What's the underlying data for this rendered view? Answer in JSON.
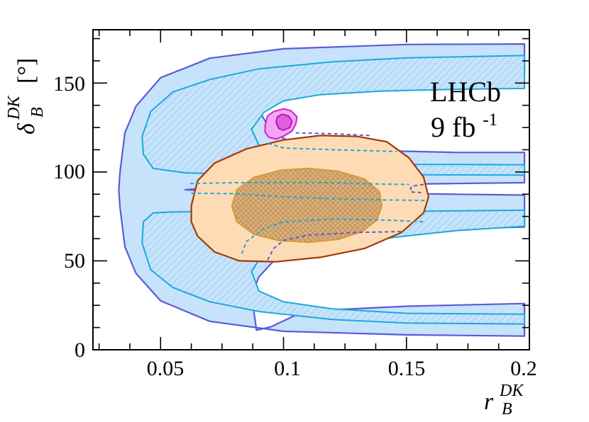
{
  "chart_data": {
    "type": "contour",
    "title": "",
    "experiment_label": "LHCb",
    "luminosity_value": "9 fb",
    "luminosity_exponent": "-1",
    "xlabel": {
      "base": "r",
      "sub": "B",
      "sup": "DK"
    },
    "ylabel": {
      "base": "δ",
      "sub": "B",
      "sup": "DK",
      "unit": "[°]"
    },
    "xlim": [
      0.0225,
      0.2
    ],
    "ylim": [
      0,
      180
    ],
    "xticks": [
      {
        "value": 0.05,
        "label": "0.05"
      },
      {
        "value": 0.1,
        "label": "0.1"
      },
      {
        "value": 0.15,
        "label": "0.15"
      },
      {
        "value": 0.2,
        "label": "0.2"
      }
    ],
    "yticks": [
      {
        "value": 0,
        "label": "0"
      },
      {
        "value": 50,
        "label": "50"
      },
      {
        "value": 100,
        "label": "100"
      },
      {
        "value": 150,
        "label": "150"
      }
    ],
    "grid": false,
    "colors": {
      "blue_outer_fill": "#c6e3fb",
      "blue_outer_line": "#5b5bd6",
      "blue_inner_line": "#1ba9dd",
      "blue_hatch": "#8fcbe9",
      "orange_outer_fill": "#fddcb5",
      "orange_outer_line": "#a4380b",
      "orange_inner_fill": "#ddb17a",
      "orange_inner_line": "#d49a35",
      "orange_hatch": "#b88a58",
      "magenta_outer_fill": "#f4a6f4",
      "magenta_outer_line": "#cc22cc",
      "magenta_inner_fill": "#e060e0",
      "magenta_inner_line": "#bb11bb"
    },
    "regions": [
      {
        "name": "blue-outer-region",
        "fill": "#c6e3fb",
        "stroke": "#5b5bd6",
        "hatch": false,
        "stroke_width": 2.2,
        "points": [
          [
            0.198,
            172
          ],
          [
            0.15,
            171.7
          ],
          [
            0.1,
            169.3
          ],
          [
            0.07,
            164
          ],
          [
            0.05,
            153
          ],
          [
            0.04,
            137
          ],
          [
            0.0355,
            122
          ],
          [
            0.0335,
            100
          ],
          [
            0.033,
            90
          ],
          [
            0.0335,
            80
          ],
          [
            0.0355,
            58
          ],
          [
            0.04,
            43
          ],
          [
            0.05,
            27.5
          ],
          [
            0.07,
            16
          ],
          [
            0.1,
            10.4
          ],
          [
            0.15,
            8.4
          ],
          [
            0.198,
            7.7
          ],
          [
            0.198,
            26
          ],
          [
            0.15,
            24.5
          ],
          [
            0.12,
            22.5
          ],
          [
            0.105,
            19.5
          ],
          [
            0.095,
            13
          ],
          [
            0.089,
            11
          ],
          [
            0.087,
            31
          ],
          [
            0.09,
            41
          ],
          [
            0.096,
            50
          ],
          [
            0.112,
            59.5
          ],
          [
            0.14,
            65.5
          ],
          [
            0.17,
            68
          ],
          [
            0.198,
            69
          ],
          [
            0.198,
            87
          ],
          [
            0.17,
            87.5
          ],
          [
            0.14,
            88
          ],
          [
            0.1,
            89
          ],
          [
            0.07,
            89.5
          ],
          [
            0.06,
            90
          ],
          [
            0.07,
            91
          ],
          [
            0.1,
            92
          ],
          [
            0.14,
            93
          ],
          [
            0.17,
            93.5
          ],
          [
            0.198,
            94
          ],
          [
            0.198,
            111
          ],
          [
            0.17,
            111
          ],
          [
            0.14,
            112
          ],
          [
            0.12,
            113
          ],
          [
            0.105,
            115
          ],
          [
            0.095,
            123
          ],
          [
            0.089,
            137
          ],
          [
            0.094,
            141
          ],
          [
            0.1,
            146
          ],
          [
            0.115,
            150.5
          ],
          [
            0.14,
            153.5
          ],
          [
            0.17,
            154.8
          ],
          [
            0.198,
            155.3
          ]
        ]
      },
      {
        "name": "blue-inner-region",
        "fill": "url(#hatch-blue)",
        "stroke": "#1ba9dd",
        "hatch": true,
        "stroke_width": 2,
        "points": [
          [
            0.198,
            165.5
          ],
          [
            0.15,
            164.2
          ],
          [
            0.12,
            162
          ],
          [
            0.09,
            158
          ],
          [
            0.07,
            152
          ],
          [
            0.055,
            145
          ],
          [
            0.046,
            134
          ],
          [
            0.0425,
            120
          ],
          [
            0.043,
            110
          ],
          [
            0.047,
            102
          ],
          [
            0.06,
            99.5
          ],
          [
            0.08,
            98.8
          ],
          [
            0.1,
            98.6
          ],
          [
            0.13,
            98.5
          ],
          [
            0.16,
            98.4
          ],
          [
            0.198,
            98.3
          ],
          [
            0.198,
            104
          ],
          [
            0.17,
            104.2
          ],
          [
            0.14,
            104.3
          ],
          [
            0.12,
            105.6
          ],
          [
            0.1,
            107
          ],
          [
            0.09,
            115
          ],
          [
            0.087,
            124
          ],
          [
            0.092,
            133.5
          ],
          [
            0.1,
            140
          ],
          [
            0.115,
            143.5
          ],
          [
            0.14,
            145.5
          ],
          [
            0.17,
            146.5
          ],
          [
            0.198,
            147
          ],
          [
            0.198,
            165.5
          ]
        ]
      },
      {
        "name": "blue-inner-region-lower",
        "fill": "url(#hatch-blue)",
        "stroke": "#1ba9dd",
        "hatch": true,
        "stroke_width": 2,
        "points": [
          [
            0.198,
            78.5
          ],
          [
            0.16,
            78
          ],
          [
            0.13,
            77
          ],
          [
            0.11,
            76.5
          ],
          [
            0.09,
            77
          ],
          [
            0.07,
            77.8
          ],
          [
            0.055,
            77.5
          ],
          [
            0.047,
            77
          ],
          [
            0.043,
            72
          ],
          [
            0.0425,
            60
          ],
          [
            0.046,
            45
          ],
          [
            0.055,
            35
          ],
          [
            0.07,
            27
          ],
          [
            0.09,
            21.5
          ],
          [
            0.12,
            17
          ],
          [
            0.15,
            15
          ],
          [
            0.198,
            14.5
          ],
          [
            0.198,
            20
          ],
          [
            0.15,
            20.5
          ],
          [
            0.12,
            23
          ],
          [
            0.1,
            27
          ],
          [
            0.09,
            33
          ],
          [
            0.087,
            44
          ],
          [
            0.09,
            50.5
          ],
          [
            0.1,
            55
          ],
          [
            0.12,
            59
          ],
          [
            0.15,
            64
          ],
          [
            0.17,
            67
          ],
          [
            0.198,
            69.5
          ]
        ]
      },
      {
        "name": "orange-outer-region",
        "fill": "#fddcb5",
        "stroke": "#a4380b",
        "hatch": false,
        "stroke_width": 2.2,
        "points": [
          [
            0.0625,
            81
          ],
          [
            0.065,
            95
          ],
          [
            0.072,
            105
          ],
          [
            0.085,
            113
          ],
          [
            0.1,
            118
          ],
          [
            0.115,
            120.5
          ],
          [
            0.13,
            120
          ],
          [
            0.142,
            117
          ],
          [
            0.151,
            108
          ],
          [
            0.157,
            97
          ],
          [
            0.159,
            86
          ],
          [
            0.157,
            77
          ],
          [
            0.148,
            66
          ],
          [
            0.133,
            57
          ],
          [
            0.115,
            52
          ],
          [
            0.097,
            49.5
          ],
          [
            0.082,
            50
          ],
          [
            0.072,
            55
          ],
          [
            0.065,
            64
          ],
          [
            0.0625,
            72
          ]
        ]
      },
      {
        "name": "orange-inner-region",
        "fill": "#ddb17a",
        "stroke": "#d49a35",
        "hatch": true,
        "stroke_width": 2,
        "points": [
          [
            0.079,
            81
          ],
          [
            0.081,
            90
          ],
          [
            0.088,
            97
          ],
          [
            0.099,
            101
          ],
          [
            0.11,
            102
          ],
          [
            0.122,
            100.5
          ],
          [
            0.133,
            96
          ],
          [
            0.139,
            89
          ],
          [
            0.14,
            81
          ],
          [
            0.138,
            73
          ],
          [
            0.132,
            66.5
          ],
          [
            0.122,
            62
          ],
          [
            0.11,
            60.5
          ],
          [
            0.098,
            61.5
          ],
          [
            0.088,
            65
          ],
          [
            0.081,
            72
          ]
        ]
      },
      {
        "name": "magenta-outer-region",
        "fill": "#f4a6f4",
        "stroke": "#cc22cc",
        "hatch": false,
        "stroke_width": 2,
        "points": [
          [
            0.0925,
            126
          ],
          [
            0.0935,
            131.5
          ],
          [
            0.096,
            134
          ],
          [
            0.1,
            135.5
          ],
          [
            0.103,
            134.5
          ],
          [
            0.1055,
            131
          ],
          [
            0.105,
            127
          ],
          [
            0.1035,
            123
          ],
          [
            0.1005,
            120.5
          ],
          [
            0.097,
            118.5
          ],
          [
            0.094,
            119.5
          ],
          [
            0.0925,
            122.5
          ]
        ]
      },
      {
        "name": "magenta-inner-region",
        "fill": "#e060e0",
        "stroke": "#bb11bb",
        "hatch": false,
        "stroke_width": 2,
        "points": [
          [
            0.097,
            128
          ],
          [
            0.0975,
            131
          ],
          [
            0.0995,
            132.5
          ],
          [
            0.102,
            131.5
          ],
          [
            0.1035,
            128.5
          ],
          [
            0.1025,
            125
          ],
          [
            0.1,
            123.5
          ],
          [
            0.098,
            124.5
          ]
        ]
      }
    ],
    "dashed_lines": [
      {
        "name": "blue-light-dashed-upper",
        "stroke": "#1ba9dd",
        "points": [
          [
            0.0938,
            116
          ],
          [
            0.1,
            113.5
          ],
          [
            0.12,
            112.5
          ],
          [
            0.14,
            111.8
          ],
          [
            0.146,
            111.5
          ]
        ]
      },
      {
        "name": "purple-dashed-upper",
        "stroke": "#5b5bd6",
        "points": [
          [
            0.105,
            122
          ],
          [
            0.12,
            121.5
          ],
          [
            0.135,
            120.5
          ]
        ]
      },
      {
        "name": "blue-light-dashed-middle",
        "stroke": "#1ba9dd",
        "points": [
          [
            0.062,
            93.5
          ],
          [
            0.08,
            94
          ],
          [
            0.1,
            94
          ],
          [
            0.12,
            94
          ],
          [
            0.14,
            93.2
          ],
          [
            0.151,
            93
          ]
        ]
      },
      {
        "name": "blue-light-dashed-lower-band",
        "stroke": "#1ba9dd",
        "points": [
          [
            0.0625,
            88
          ],
          [
            0.08,
            87.8
          ],
          [
            0.1,
            86
          ],
          [
            0.12,
            85
          ],
          [
            0.14,
            84.3
          ],
          [
            0.158,
            84
          ]
        ]
      },
      {
        "name": "purple-dashed-right",
        "stroke": "#5b5bd6",
        "points": [
          [
            0.157,
            93
          ],
          [
            0.152,
            92
          ],
          [
            0.1515,
            89
          ],
          [
            0.153,
            88.6
          ],
          [
            0.156,
            88.4
          ]
        ]
      },
      {
        "name": "blue-light-dashed-lower",
        "stroke": "#1ba9dd",
        "points": [
          [
            0.083,
            54
          ],
          [
            0.085,
            61
          ],
          [
            0.092,
            68
          ],
          [
            0.1,
            72
          ],
          [
            0.12,
            73.5
          ],
          [
            0.14,
            73
          ],
          [
            0.157,
            72
          ]
        ]
      },
      {
        "name": "purple-dashed-lower",
        "stroke": "#5b5bd6",
        "points": [
          [
            0.0935,
            50.5
          ],
          [
            0.096,
            57
          ],
          [
            0.1,
            61.5
          ],
          [
            0.11,
            64.5
          ],
          [
            0.13,
            66
          ],
          [
            0.148,
            66.5
          ]
        ]
      }
    ]
  }
}
